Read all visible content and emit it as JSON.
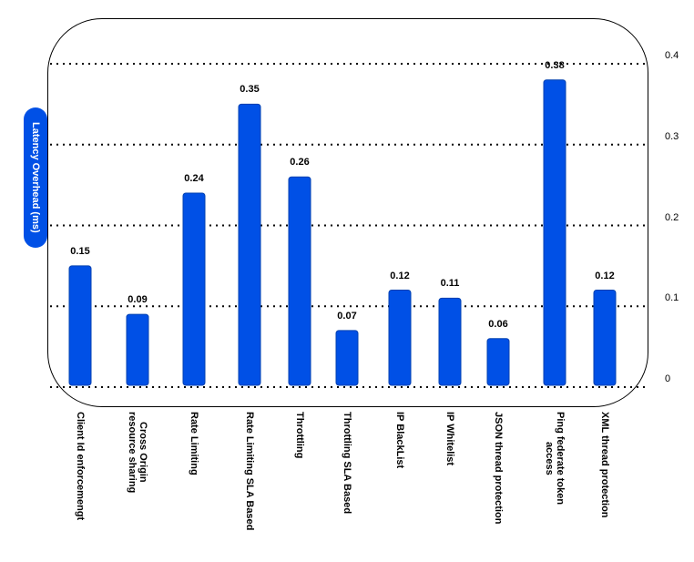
{
  "chart_data": {
    "type": "bar",
    "title": "",
    "xlabel": "",
    "ylabel": "Latency Overhead (ms)",
    "ylim": [
      0,
      0.4
    ],
    "yticks": [
      "0",
      "0.1",
      "0.2",
      "0.3",
      "0.4"
    ],
    "grid": true,
    "categories": [
      "Client Id enforcemengt",
      "Cross Origin\nresource sharing",
      "Rate Limiting",
      "Rate Limiting SLA Based",
      "Throttling",
      "Throttling SLA Based",
      "IP BlackList",
      "IP Whitelist",
      "JSON thread protection",
      "Ping federate token\naccess",
      "XML thread protection"
    ],
    "values": [
      0.15,
      0.09,
      0.24,
      0.35,
      0.26,
      0.07,
      0.12,
      0.11,
      0.06,
      0.38,
      0.12
    ],
    "value_labels": [
      "0.15",
      "0.09",
      "0.24",
      "0.35",
      "0.26",
      "0.07",
      "0.12",
      "0.11",
      "0.06",
      "0.38",
      "0.12"
    ],
    "bar_color": "#0050e6"
  }
}
